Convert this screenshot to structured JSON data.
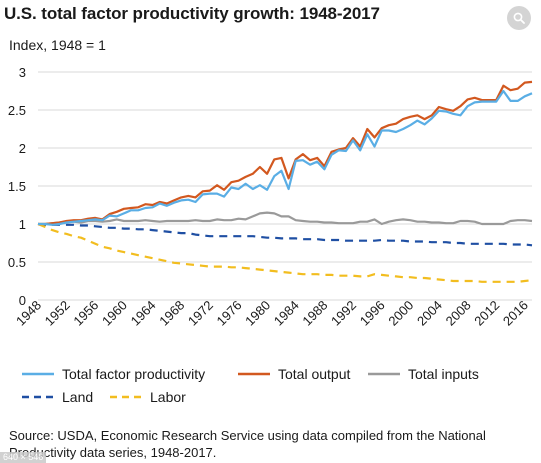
{
  "header": {
    "title": "U.S. total factor productivity growth: 1948-2017",
    "subtitle": "Index, 1948 = 1"
  },
  "zoom_icon": "magnifier-icon",
  "source": "Source: USDA, Economic Research Service using data compiled from the National Productivity data series, 1948-2017.",
  "image_size_badge": "640 × 546",
  "legend": [
    {
      "label": "Total factor productivity",
      "color": "#5aaee5",
      "style": "solid"
    },
    {
      "label": "Total output",
      "color": "#d2581f",
      "style": "solid"
    },
    {
      "label": "Total inputs",
      "color": "#9a9a9a",
      "style": "solid"
    },
    {
      "label": "Land",
      "color": "#1f4fa3",
      "style": "dashed"
    },
    {
      "label": "Labor",
      "color": "#f2bd1f",
      "style": "dashed"
    }
  ],
  "chart_data": {
    "type": "line",
    "title": "U.S. total factor productivity growth: 1948-2017",
    "ylabel": "Index, 1948 = 1",
    "xlim": [
      1948,
      2017
    ],
    "ylim": [
      0,
      3
    ],
    "yticks": [
      "0",
      "0.5",
      "1",
      "1.5",
      "2",
      "2.5",
      "3"
    ],
    "xticks": [
      "1948",
      "1952",
      "1956",
      "1960",
      "1964",
      "1968",
      "1972",
      "1976",
      "1980",
      "1984",
      "1988",
      "1992",
      "1996",
      "2000",
      "2004",
      "2008",
      "2012",
      "2016"
    ],
    "grid": "horizontal",
    "x": [
      1948,
      1949,
      1950,
      1951,
      1952,
      1953,
      1954,
      1955,
      1956,
      1957,
      1958,
      1959,
      1960,
      1961,
      1962,
      1963,
      1964,
      1965,
      1966,
      1967,
      1968,
      1969,
      1970,
      1971,
      1972,
      1973,
      1974,
      1975,
      1976,
      1977,
      1978,
      1979,
      1980,
      1981,
      1982,
      1983,
      1984,
      1985,
      1986,
      1987,
      1988,
      1989,
      1990,
      1991,
      1992,
      1993,
      1994,
      1995,
      1996,
      1997,
      1998,
      1999,
      2000,
      2001,
      2002,
      2003,
      2004,
      2005,
      2006,
      2007,
      2008,
      2009,
      2010,
      2011,
      2012,
      2013,
      2014,
      2015,
      2016,
      2017
    ],
    "series": [
      {
        "name": "Total factor productivity",
        "color": "#5aaee5",
        "dash": false,
        "values": [
          1.0,
          1.0,
          0.99,
          1.0,
          1.02,
          1.03,
          1.04,
          1.05,
          1.06,
          1.05,
          1.11,
          1.1,
          1.14,
          1.18,
          1.18,
          1.21,
          1.22,
          1.27,
          1.24,
          1.28,
          1.31,
          1.32,
          1.29,
          1.39,
          1.4,
          1.4,
          1.36,
          1.48,
          1.46,
          1.53,
          1.46,
          1.51,
          1.45,
          1.63,
          1.7,
          1.46,
          1.83,
          1.84,
          1.78,
          1.82,
          1.72,
          1.91,
          1.97,
          1.96,
          2.1,
          1.97,
          2.18,
          2.02,
          2.23,
          2.23,
          2.21,
          2.25,
          2.3,
          2.36,
          2.31,
          2.39,
          2.49,
          2.48,
          2.45,
          2.43,
          2.55,
          2.6,
          2.61,
          2.61,
          2.61,
          2.75,
          2.62,
          2.62,
          2.68,
          2.72
        ]
      },
      {
        "name": "Total output",
        "color": "#d2581f",
        "dash": false,
        "values": [
          1.0,
          1.0,
          1.01,
          1.02,
          1.04,
          1.05,
          1.05,
          1.07,
          1.08,
          1.06,
          1.13,
          1.16,
          1.2,
          1.21,
          1.22,
          1.26,
          1.25,
          1.29,
          1.27,
          1.31,
          1.35,
          1.37,
          1.35,
          1.43,
          1.44,
          1.51,
          1.45,
          1.55,
          1.57,
          1.62,
          1.66,
          1.75,
          1.66,
          1.85,
          1.87,
          1.6,
          1.85,
          1.92,
          1.84,
          1.87,
          1.76,
          1.95,
          1.98,
          2.0,
          2.13,
          2.02,
          2.25,
          2.14,
          2.26,
          2.3,
          2.32,
          2.38,
          2.41,
          2.43,
          2.38,
          2.43,
          2.54,
          2.51,
          2.49,
          2.55,
          2.64,
          2.66,
          2.63,
          2.63,
          2.63,
          2.82,
          2.76,
          2.78,
          2.86,
          2.87
        ]
      },
      {
        "name": "Total inputs",
        "color": "#9a9a9a",
        "dash": false,
        "values": [
          1.0,
          1.0,
          1.01,
          1.02,
          1.03,
          1.03,
          1.02,
          1.04,
          1.04,
          1.03,
          1.04,
          1.06,
          1.04,
          1.04,
          1.04,
          1.05,
          1.04,
          1.03,
          1.04,
          1.04,
          1.04,
          1.04,
          1.05,
          1.04,
          1.04,
          1.06,
          1.05,
          1.05,
          1.07,
          1.06,
          1.1,
          1.14,
          1.15,
          1.14,
          1.1,
          1.1,
          1.05,
          1.04,
          1.03,
          1.03,
          1.02,
          1.02,
          1.01,
          1.01,
          1.01,
          1.03,
          1.03,
          1.06,
          1.0,
          1.03,
          1.05,
          1.06,
          1.05,
          1.03,
          1.03,
          1.02,
          1.02,
          1.01,
          1.01,
          1.04,
          1.04,
          1.03,
          1.0,
          1.0,
          1.0,
          1.0,
          1.04,
          1.05,
          1.05,
          1.04
        ]
      },
      {
        "name": "Land",
        "color": "#1f4fa3",
        "dash": true,
        "values": [
          1.0,
          0.99,
          0.99,
          0.99,
          0.99,
          0.99,
          0.98,
          0.98,
          0.97,
          0.96,
          0.95,
          0.95,
          0.94,
          0.94,
          0.93,
          0.93,
          0.92,
          0.91,
          0.9,
          0.89,
          0.88,
          0.88,
          0.86,
          0.85,
          0.84,
          0.84,
          0.84,
          0.84,
          0.84,
          0.84,
          0.84,
          0.83,
          0.82,
          0.82,
          0.81,
          0.81,
          0.81,
          0.8,
          0.8,
          0.8,
          0.79,
          0.79,
          0.79,
          0.78,
          0.78,
          0.78,
          0.78,
          0.78,
          0.79,
          0.78,
          0.78,
          0.78,
          0.77,
          0.77,
          0.77,
          0.76,
          0.76,
          0.76,
          0.75,
          0.75,
          0.74,
          0.74,
          0.74,
          0.74,
          0.74,
          0.74,
          0.73,
          0.73,
          0.73,
          0.72
        ]
      },
      {
        "name": "Labor",
        "color": "#f2bd1f",
        "dash": true,
        "values": [
          1.0,
          0.96,
          0.92,
          0.89,
          0.87,
          0.84,
          0.82,
          0.78,
          0.74,
          0.7,
          0.68,
          0.65,
          0.63,
          0.61,
          0.59,
          0.57,
          0.55,
          0.53,
          0.51,
          0.49,
          0.48,
          0.47,
          0.46,
          0.45,
          0.44,
          0.44,
          0.44,
          0.43,
          0.43,
          0.42,
          0.41,
          0.4,
          0.39,
          0.38,
          0.37,
          0.36,
          0.35,
          0.34,
          0.34,
          0.34,
          0.33,
          0.33,
          0.32,
          0.32,
          0.32,
          0.31,
          0.31,
          0.34,
          0.33,
          0.32,
          0.31,
          0.3,
          0.3,
          0.29,
          0.29,
          0.28,
          0.27,
          0.26,
          0.25,
          0.25,
          0.25,
          0.25,
          0.24,
          0.24,
          0.24,
          0.24,
          0.24,
          0.24,
          0.25,
          0.26
        ]
      }
    ]
  }
}
